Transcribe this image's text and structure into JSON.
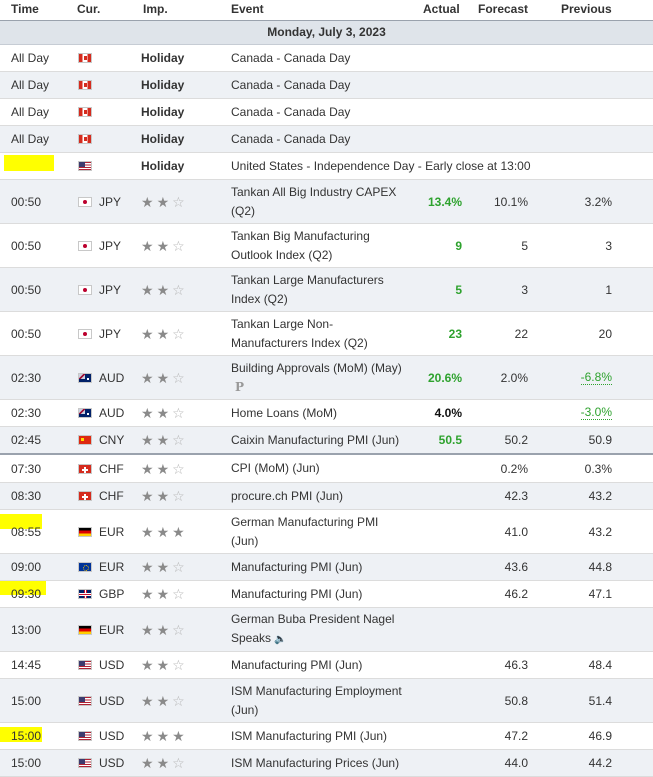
{
  "header": {
    "time": "Time",
    "cur": "Cur.",
    "imp": "Imp.",
    "event": "Event",
    "actual": "Actual",
    "forecast": "Forecast",
    "previous": "Previous"
  },
  "date_label": "Monday, July 3, 2023",
  "colors": {
    "actual_green": "#2ea22e",
    "highlight": "#ffff00",
    "row_alt": "#eef1f5",
    "date_band": "#dfe4ea"
  },
  "rows": [
    {
      "time": "All Day",
      "flag": "CA",
      "cur": "",
      "holiday": "Holiday",
      "stars": 0,
      "event": "Canada - Canada Day",
      "actual": "",
      "forecast": "",
      "previous": ""
    },
    {
      "time": "All Day",
      "flag": "CA",
      "cur": "",
      "holiday": "Holiday",
      "stars": 0,
      "event": "Canada - Canada Day",
      "actual": "",
      "forecast": "",
      "previous": ""
    },
    {
      "time": "All Day",
      "flag": "CA",
      "cur": "",
      "holiday": "Holiday",
      "stars": 0,
      "event": "Canada - Canada Day",
      "actual": "",
      "forecast": "",
      "previous": ""
    },
    {
      "time": "All Day",
      "flag": "CA",
      "cur": "",
      "holiday": "Holiday",
      "stars": 0,
      "event": "Canada - Canada Day",
      "actual": "",
      "forecast": "",
      "previous": ""
    },
    {
      "time": "",
      "flag": "US",
      "cur": "",
      "holiday": "Holiday",
      "stars": 0,
      "event": "United States - Independence Day - Early close at 13:00",
      "actual": "",
      "forecast": "",
      "previous": ""
    },
    {
      "time": "00:50",
      "flag": "JP",
      "cur": "JPY",
      "holiday": "",
      "stars": 2,
      "event": "Tankan All Big Industry CAPEX (Q2)",
      "actual": "13.4%",
      "actual_style": "green",
      "forecast": "10.1%",
      "previous": "3.2%"
    },
    {
      "time": "00:50",
      "flag": "JP",
      "cur": "JPY",
      "holiday": "",
      "stars": 2,
      "event": "Tankan Big Manufacturing Outlook Index (Q2)",
      "actual": "9",
      "actual_style": "green",
      "forecast": "5",
      "previous": "3"
    },
    {
      "time": "00:50",
      "flag": "JP",
      "cur": "JPY",
      "holiday": "",
      "stars": 2,
      "event": "Tankan Large Manufacturers Index (Q2)",
      "actual": "5",
      "actual_style": "green",
      "forecast": "3",
      "previous": "1"
    },
    {
      "time": "00:50",
      "flag": "JP",
      "cur": "JPY",
      "holiday": "",
      "stars": 2,
      "event": "Tankan Large Non-Manufacturers Index (Q2)",
      "actual": "23",
      "actual_style": "green",
      "forecast": "22",
      "previous": "20"
    },
    {
      "time": "02:30",
      "flag": "AU",
      "cur": "AUD",
      "holiday": "",
      "stars": 2,
      "event": "Building Approvals (MoM) (May)",
      "sub_icon": "P",
      "actual": "20.6%",
      "actual_style": "green",
      "forecast": "2.0%",
      "previous": "-6.8%",
      "previous_style": "green"
    },
    {
      "time": "02:30",
      "flag": "AU",
      "cur": "AUD",
      "holiday": "",
      "stars": 2,
      "event": "Home Loans (MoM)",
      "actual": "4.0%",
      "actual_style": "black",
      "forecast": "",
      "previous": "-3.0%",
      "previous_style": "green"
    },
    {
      "time": "02:45",
      "flag": "CN",
      "cur": "CNY",
      "holiday": "",
      "stars": 2,
      "event": "Caixin Manufacturing PMI (Jun)",
      "actual": "50.5",
      "actual_style": "green",
      "forecast": "50.2",
      "previous": "50.9"
    },
    {
      "time": "07:30",
      "flag": "CH",
      "cur": "CHF",
      "holiday": "",
      "stars": 2,
      "event": "CPI (MoM) (Jun)",
      "actual": "",
      "forecast": "0.2%",
      "previous": "0.3%"
    },
    {
      "time": "08:30",
      "flag": "CH",
      "cur": "CHF",
      "holiday": "",
      "stars": 2,
      "event": "procure.ch PMI (Jun)",
      "actual": "",
      "forecast": "42.3",
      "previous": "43.2"
    },
    {
      "time": "08:55",
      "flag": "DE",
      "cur": "EUR",
      "holiday": "",
      "stars": 3,
      "event": "German Manufacturing PMI (Jun)",
      "actual": "",
      "forecast": "41.0",
      "previous": "43.2"
    },
    {
      "time": "09:00",
      "flag": "EU",
      "cur": "EUR",
      "holiday": "",
      "stars": 2,
      "event": "Manufacturing PMI (Jun)",
      "actual": "",
      "forecast": "43.6",
      "previous": "44.8"
    },
    {
      "time": "09:30",
      "flag": "GB",
      "cur": "GBP",
      "holiday": "",
      "stars": 2,
      "event": "Manufacturing PMI (Jun)",
      "actual": "",
      "forecast": "46.2",
      "previous": "47.1"
    },
    {
      "time": "13:00",
      "flag": "DE",
      "cur": "EUR",
      "holiday": "",
      "stars": 2,
      "event": "German Buba President Nagel Speaks",
      "speaker": true,
      "actual": "",
      "forecast": "",
      "previous": ""
    },
    {
      "time": "14:45",
      "flag": "US",
      "cur": "USD",
      "holiday": "",
      "stars": 2,
      "event": "Manufacturing PMI (Jun)",
      "actual": "",
      "forecast": "46.3",
      "previous": "48.4"
    },
    {
      "time": "15:00",
      "flag": "US",
      "cur": "USD",
      "holiday": "",
      "stars": 2,
      "event": "ISM Manufacturing Employment (Jun)",
      "actual": "",
      "forecast": "50.8",
      "previous": "51.4"
    },
    {
      "time": "15:00",
      "flag": "US",
      "cur": "USD",
      "holiday": "",
      "stars": 3,
      "event": "ISM Manufacturing PMI (Jun)",
      "actual": "",
      "forecast": "47.2",
      "previous": "46.9"
    },
    {
      "time": "15:00",
      "flag": "US",
      "cur": "USD",
      "holiday": "",
      "stars": 2,
      "event": "ISM Manufacturing Prices (Jun)",
      "actual": "",
      "forecast": "44.0",
      "previous": "44.2"
    }
  ]
}
